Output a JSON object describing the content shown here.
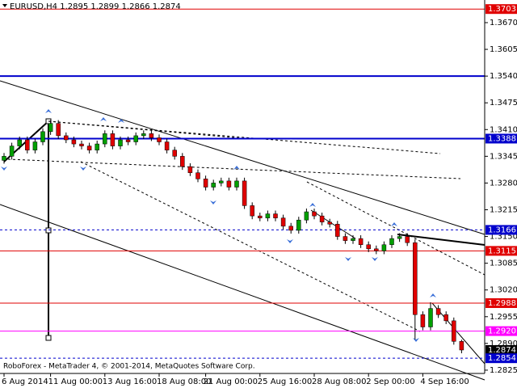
{
  "chart_data": {
    "type": "candlestick",
    "symbol": "EURUSD,H4",
    "footer": "RoboForex - MetaTrader 4, © 2001-2014, MetaQuotes Software Corp.",
    "up_color": "#00a000",
    "down_color": "#e00000",
    "open": [
      1.3335,
      1.3345,
      1.337,
      1.3385,
      1.336,
      1.338,
      1.3405,
      1.3425,
      1.3395,
      1.3385,
      1.3375,
      1.337,
      1.336,
      1.3375,
      1.34,
      1.337,
      1.3385,
      1.338,
      1.3395,
      1.34,
      1.339,
      1.338,
      1.336,
      1.3345,
      1.332,
      1.3305,
      1.329,
      1.327,
      1.328,
      1.3285,
      1.327,
      1.3285,
      1.3225,
      1.32,
      1.3195,
      1.3205,
      1.3195,
      1.3175,
      1.3165,
      1.319,
      1.321,
      1.32,
      1.3185,
      1.318,
      1.315,
      1.314,
      1.3145,
      1.313,
      1.312,
      1.3115,
      1.313,
      1.3145,
      1.315,
      1.3135,
      1.296,
      1.293,
      1.2975,
      1.296,
      1.2945,
      1.2895
    ],
    "high": [
      1.3353,
      1.3378,
      1.3393,
      1.3393,
      1.3388,
      1.3413,
      1.3433,
      1.3433,
      1.3403,
      1.3393,
      1.3383,
      1.3378,
      1.3383,
      1.3408,
      1.3408,
      1.3393,
      1.3393,
      1.3403,
      1.3408,
      1.3408,
      1.3398,
      1.3388,
      1.3368,
      1.3353,
      1.3328,
      1.3313,
      1.3298,
      1.3288,
      1.3293,
      1.3293,
      1.3293,
      1.3293,
      1.3233,
      1.3208,
      1.3213,
      1.3213,
      1.3203,
      1.3183,
      1.3198,
      1.3218,
      1.3218,
      1.3208,
      1.3193,
      1.3188,
      1.3158,
      1.3153,
      1.3153,
      1.3138,
      1.3128,
      1.3138,
      1.3153,
      1.3158,
      1.3158,
      1.3143,
      1.2968,
      1.299,
      1.2983,
      1.2968,
      1.2953,
      1.2899
    ],
    "low": [
      1.3327,
      1.3337,
      1.3362,
      1.3352,
      1.3352,
      1.3372,
      1.3397,
      1.3387,
      1.3377,
      1.3367,
      1.3362,
      1.3352,
      1.3352,
      1.3367,
      1.3362,
      1.3362,
      1.3372,
      1.3372,
      1.3387,
      1.3382,
      1.3372,
      1.3352,
      1.3337,
      1.3312,
      1.3297,
      1.3282,
      1.3262,
      1.3262,
      1.3272,
      1.3262,
      1.3262,
      1.3217,
      1.3192,
      1.3187,
      1.3187,
      1.3187,
      1.3167,
      1.3157,
      1.3157,
      1.3182,
      1.3192,
      1.3177,
      1.3172,
      1.3142,
      1.3132,
      1.3132,
      1.3122,
      1.3112,
      1.3107,
      1.3107,
      1.3122,
      1.3137,
      1.3127,
      1.29,
      1.2922,
      1.2922,
      1.2952,
      1.2937,
      1.2887,
      1.2866
    ],
    "close": [
      1.3345,
      1.337,
      1.3385,
      1.336,
      1.338,
      1.3405,
      1.3425,
      1.3395,
      1.3385,
      1.3375,
      1.337,
      1.336,
      1.3375,
      1.34,
      1.337,
      1.3385,
      1.338,
      1.3395,
      1.34,
      1.339,
      1.338,
      1.336,
      1.3345,
      1.332,
      1.3305,
      1.329,
      1.327,
      1.328,
      1.3285,
      1.327,
      1.3285,
      1.3225,
      1.32,
      1.3195,
      1.3205,
      1.3195,
      1.3175,
      1.3165,
      1.319,
      1.321,
      1.32,
      1.3185,
      1.318,
      1.315,
      1.314,
      1.3145,
      1.313,
      1.312,
      1.3115,
      1.313,
      1.3145,
      1.315,
      1.3135,
      1.296,
      1.293,
      1.2975,
      1.296,
      1.2945,
      1.2895,
      1.2874
    ],
    "xlim": [
      -0.5,
      61.5
    ],
    "xticks": [
      {
        "value": 0,
        "label": "6 Aug 2014"
      },
      {
        "value": 6,
        "label": "11 Aug 00:00"
      },
      {
        "value": 13,
        "label": "13 Aug 16:00"
      },
      {
        "value": 20,
        "label": "18 Aug 08:00"
      },
      {
        "value": 26,
        "label": "21 Aug 00:00"
      },
      {
        "value": 33,
        "label": "25 Aug 16:00"
      },
      {
        "value": 40,
        "label": "28 Aug 08:00"
      },
      {
        "value": 47,
        "label": "2 Sep 00:00"
      },
      {
        "value": 54,
        "label": "4 Sep 16:00"
      }
    ],
    "ylim": [
      1.2817,
      1.3725
    ],
    "yticks": [
      {
        "value": 1.367,
        "label": "1.3670"
      },
      1.3605,
      {
        "value": 1.354,
        "label": "1.3540"
      },
      1.3475,
      {
        "value": 1.341,
        "label": "1.3410"
      },
      1.3345,
      {
        "value": 1.328,
        "label": "1.3280"
      },
      1.3215,
      {
        "value": 1.315,
        "label": "1.3150"
      },
      1.3085,
      {
        "value": 1.302,
        "label": "1.3020"
      },
      1.2955,
      {
        "value": 1.289,
        "label": "1.2890"
      },
      1.2825
    ],
    "levels": [
      {
        "value": 1.3703,
        "color": "#e00000",
        "style": "solid",
        "boxed": true
      },
      {
        "value": 1.354,
        "color": "#0000cc",
        "style": "thick",
        "boxed": false
      },
      {
        "value": 1.3388,
        "color": "#0000cc",
        "style": "thick",
        "boxed": true
      },
      {
        "value": 1.3166,
        "color": "#0000cc",
        "style": "dashed",
        "boxed": true
      },
      {
        "value": 1.3115,
        "color": "#e00000",
        "style": "solid",
        "boxed": true
      },
      {
        "value": 1.2988,
        "color": "#e00000",
        "style": "solid",
        "boxed": true
      },
      {
        "value": 1.292,
        "label": "1.2920",
        "color": "#ff00ff",
        "style": "solid",
        "boxed": true
      },
      {
        "value": 1.2874,
        "color": "#000000",
        "style": "none",
        "boxed": true
      },
      {
        "value": 1.2854,
        "color": "#0000cc",
        "style": "dashed",
        "boxed": true
      }
    ]
  }
}
